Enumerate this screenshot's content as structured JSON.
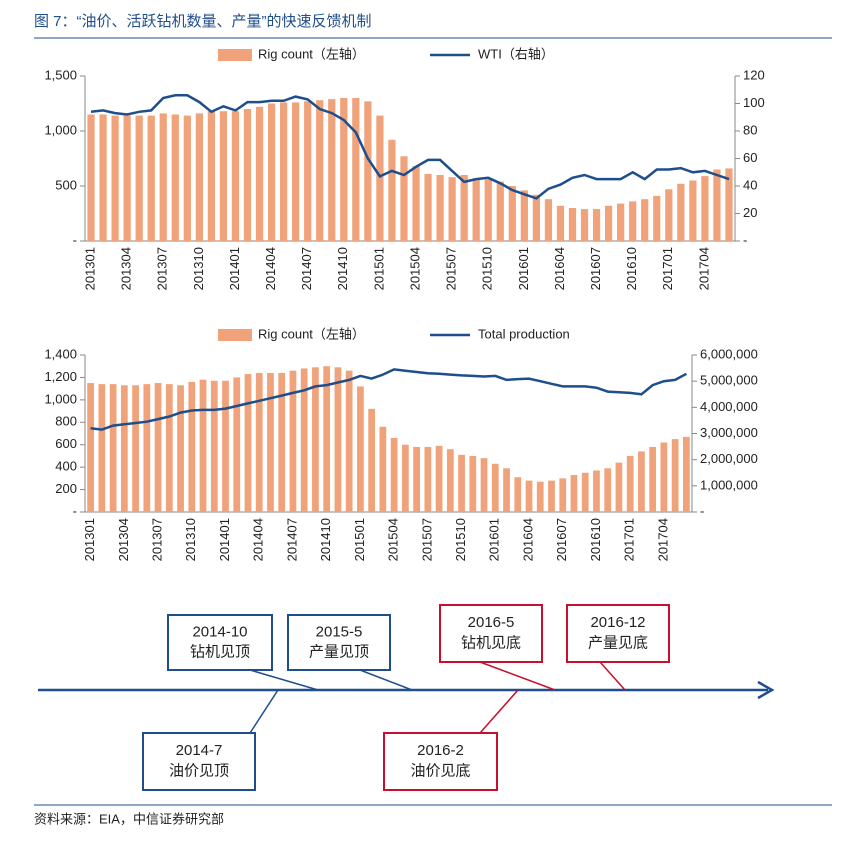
{
  "title": "图 7：“油价、活跃钻机数量、产量”的快速反馈机制",
  "source": "资料来源：EIA，中信证券研究部",
  "chart_data": [
    {
      "type": "bar_line",
      "categories": [
        "201301",
        null,
        null,
        "201304",
        null,
        null,
        "201307",
        null,
        null,
        "201310",
        null,
        null,
        "201401",
        null,
        null,
        "201404",
        null,
        null,
        "201407",
        null,
        null,
        "201410",
        null,
        null,
        "201501",
        null,
        null,
        "201504",
        null,
        null,
        "201507",
        null,
        null,
        "201510",
        null,
        null,
        "201601",
        null,
        null,
        "201604",
        null,
        null,
        "201607",
        null,
        null,
        "201610",
        null,
        null,
        "201701",
        null,
        null,
        "201704",
        null,
        null
      ],
      "series": [
        {
          "name": "Rig count（左轴）",
          "type": "bar",
          "color": "#f0a27a",
          "values": [
            1150,
            1150,
            1140,
            1140,
            1140,
            1140,
            1160,
            1150,
            1140,
            1160,
            1180,
            1180,
            1180,
            1200,
            1220,
            1250,
            1260,
            1260,
            1270,
            1280,
            1290,
            1300,
            1300,
            1270,
            1140,
            920,
            770,
            680,
            610,
            600,
            580,
            600,
            570,
            560,
            540,
            500,
            460,
            420,
            380,
            320,
            300,
            290,
            290,
            320,
            340,
            360,
            380,
            410,
            470,
            520,
            550,
            590,
            650,
            660
          ]
        },
        {
          "name": "WTI（右轴）",
          "type": "line",
          "axis": "y2",
          "color": "#1f4e8c",
          "values": [
            94,
            95,
            93,
            92,
            94,
            95,
            104,
            106,
            106,
            101,
            94,
            98,
            95,
            101,
            101,
            102,
            102,
            105,
            103,
            96,
            93,
            88,
            79,
            60,
            47,
            51,
            48,
            54,
            59,
            59,
            51,
            43,
            45,
            46,
            42,
            37,
            34,
            31,
            38,
            41,
            46,
            48,
            45,
            45,
            45,
            50,
            45,
            52,
            52,
            53,
            50,
            51,
            48,
            45
          ]
        }
      ],
      "ylim": [
        0,
        1500
      ],
      "yticks": [
        {
          "value": 0,
          "label": "-"
        },
        500,
        {
          "value": 1000,
          "label": "1,000"
        },
        {
          "value": 1500,
          "label": "1,500"
        }
      ],
      "y2lim": [
        0,
        120
      ],
      "y2ticks": [
        {
          "value": 0,
          "label": "-"
        },
        20,
        40,
        60,
        80,
        100,
        120
      ]
    },
    {
      "type": "bar_line",
      "categories": [
        "201301",
        null,
        null,
        "201304",
        null,
        null,
        "201307",
        null,
        null,
        "201310",
        null,
        null,
        "201401",
        null,
        null,
        "201404",
        null,
        null,
        "201407",
        null,
        null,
        "201410",
        null,
        null,
        "201501",
        null,
        null,
        "201504",
        null,
        null,
        "201507",
        null,
        null,
        "201510",
        null,
        null,
        "201601",
        null,
        null,
        "201604",
        null,
        null,
        "201607",
        null,
        null,
        "201610",
        null,
        null,
        "201701",
        null,
        null,
        "201704",
        null,
        null
      ],
      "series": [
        {
          "name": "Rig count（左轴）",
          "type": "bar",
          "color": "#f0a27a",
          "values": [
            1150,
            1140,
            1140,
            1130,
            1130,
            1140,
            1150,
            1140,
            1130,
            1160,
            1180,
            1170,
            1170,
            1200,
            1230,
            1240,
            1240,
            1240,
            1260,
            1280,
            1290,
            1300,
            1290,
            1260,
            1120,
            920,
            760,
            660,
            600,
            580,
            580,
            590,
            560,
            510,
            500,
            480,
            430,
            390,
            310,
            280,
            270,
            280,
            300,
            330,
            350,
            370,
            390,
            440,
            500,
            540,
            580,
            620,
            650,
            670
          ]
        },
        {
          "name": "Total production",
          "type": "line",
          "axis": "y2",
          "color": "#1f4e8c",
          "values": [
            3200000,
            3150000,
            3300000,
            3350000,
            3400000,
            3450000,
            3550000,
            3650000,
            3800000,
            3880000,
            3900000,
            3900000,
            3950000,
            4050000,
            4150000,
            4250000,
            4350000,
            4450000,
            4550000,
            4650000,
            4800000,
            4850000,
            4950000,
            5050000,
            5200000,
            5100000,
            5250000,
            5450000,
            5400000,
            5350000,
            5300000,
            5280000,
            5250000,
            5220000,
            5200000,
            5180000,
            5200000,
            5050000,
            5080000,
            5100000,
            5000000,
            4900000,
            4800000,
            4800000,
            4800000,
            4750000,
            4600000,
            4580000,
            4550000,
            4500000,
            4850000,
            5000000,
            5050000,
            5280000
          ]
        }
      ],
      "ylim": [
        0,
        1400
      ],
      "yticks": [
        {
          "value": 0,
          "label": "-"
        },
        200,
        400,
        600,
        800,
        {
          "value": 1000,
          "label": "1,000"
        },
        {
          "value": 1200,
          "label": "1,200"
        },
        {
          "value": 1400,
          "label": "1,400"
        }
      ],
      "y2lim": [
        0,
        6000000
      ],
      "y2ticks": [
        {
          "value": 0,
          "label": "-"
        },
        {
          "value": 1000000,
          "label": "1,000,000"
        },
        {
          "value": 2000000,
          "label": "2,000,000"
        },
        {
          "value": 3000000,
          "label": "3,000,000"
        },
        {
          "value": 4000000,
          "label": "4,000,000"
        },
        {
          "value": 5000000,
          "label": "5,000,000"
        },
        {
          "value": 6000000,
          "label": "6,000,000"
        }
      ]
    }
  ],
  "timeline": {
    "events": [
      {
        "date": "2014-10",
        "label": "钻机见顶",
        "color": "#1f4e8c"
      },
      {
        "date": "2015-5",
        "label": "产量见顶",
        "color": "#1f4e8c"
      },
      {
        "date": "2016-5",
        "label": "钻机见底",
        "color": "#c8102e"
      },
      {
        "date": "2016-12",
        "label": "产量见底",
        "color": "#c8102e"
      },
      {
        "date": "2014-7",
        "label": "油价见顶",
        "color": "#1f4e8c"
      },
      {
        "date": "2016-2",
        "label": "油价见底",
        "color": "#c8102e"
      }
    ]
  }
}
